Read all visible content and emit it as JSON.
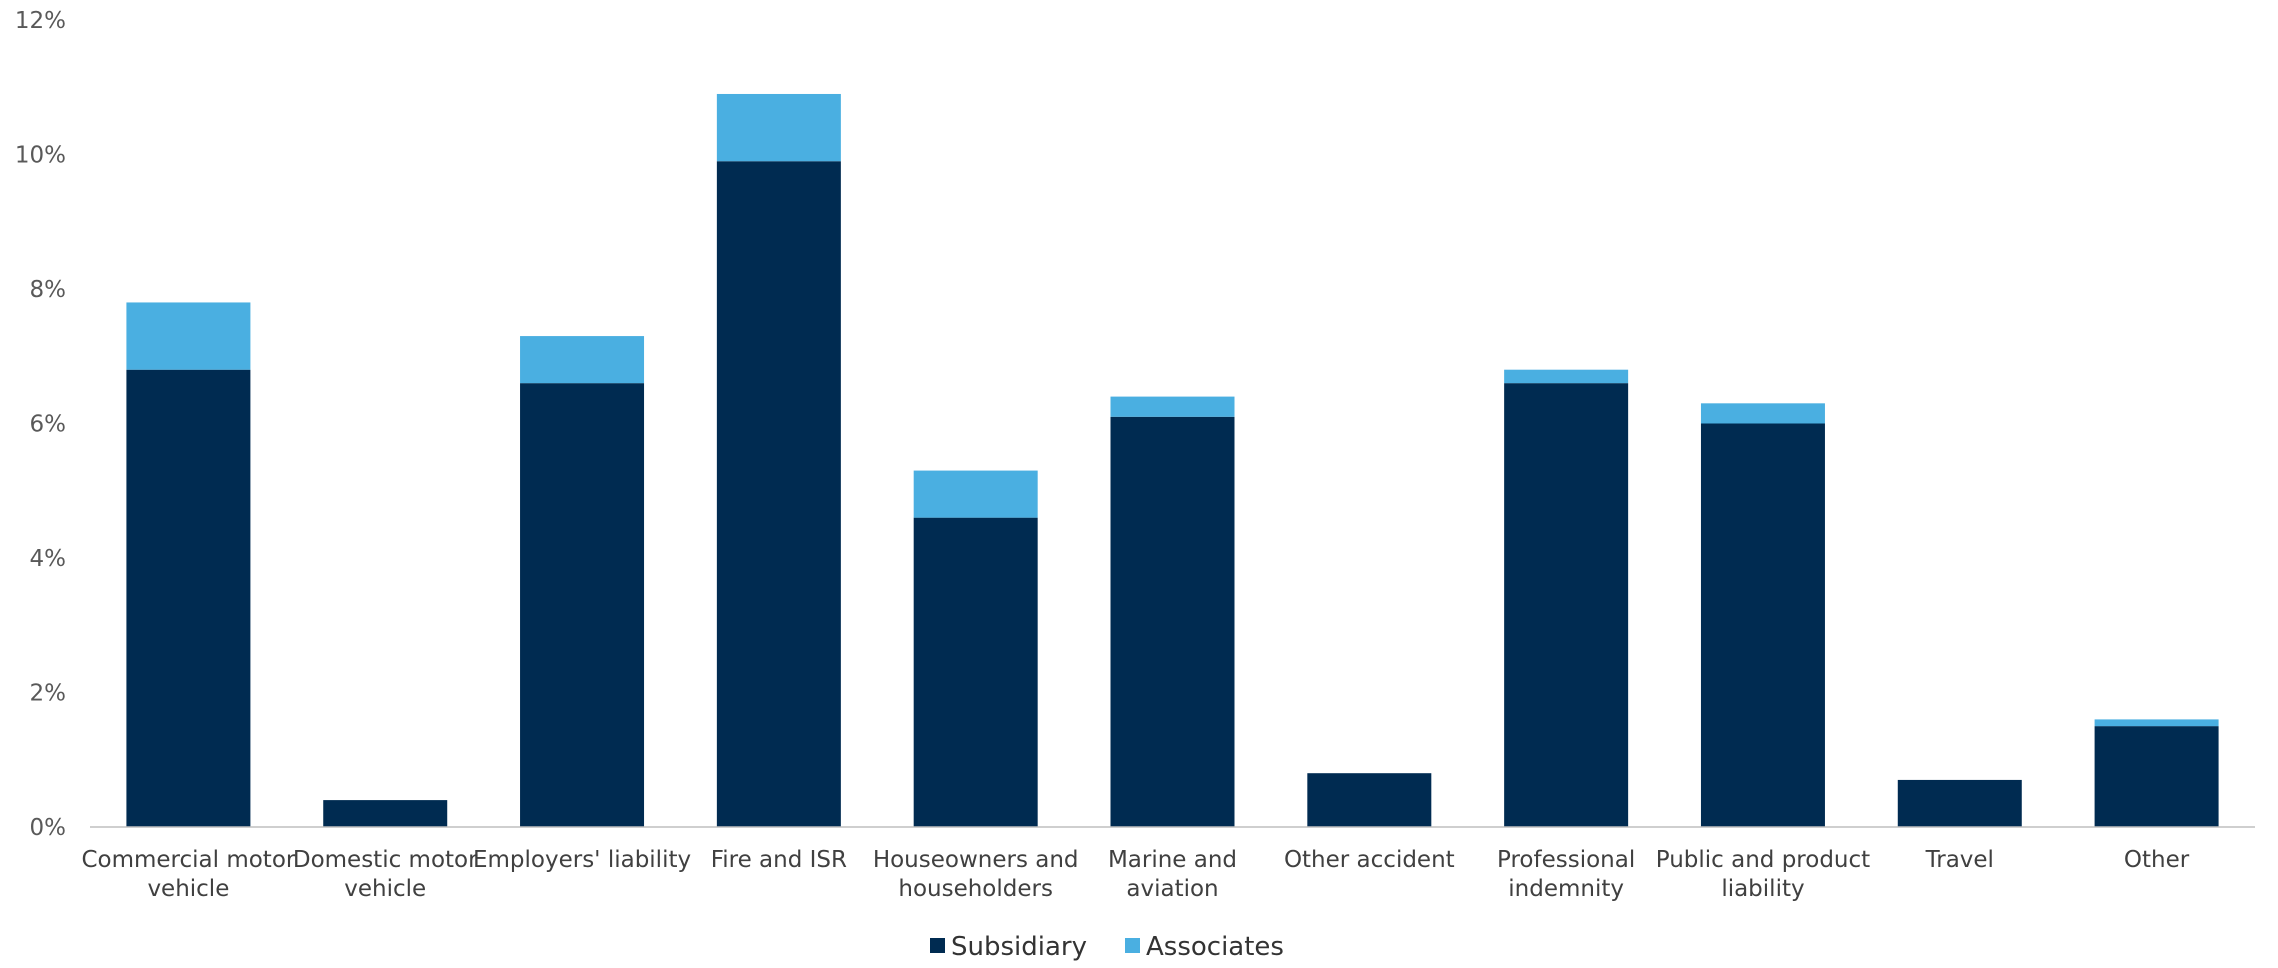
{
  "chart_data": {
    "type": "bar",
    "stacked": true,
    "categories": [
      [
        "Commercial motor",
        "vehicle"
      ],
      [
        "Domestic motor",
        "vehicle"
      ],
      [
        "Employers' liability"
      ],
      [
        "Fire and ISR"
      ],
      [
        "Houseowners and",
        "householders"
      ],
      [
        "Marine and",
        "aviation"
      ],
      [
        "Other accident"
      ],
      [
        "Professional",
        "indemnity"
      ],
      [
        "Public and product",
        "liability"
      ],
      [
        "Travel"
      ],
      [
        "Other"
      ]
    ],
    "series": [
      {
        "name": "Subsidiary",
        "color": "#002B51",
        "values": [
          6.8,
          0.4,
          6.6,
          9.9,
          4.6,
          6.1,
          0.8,
          6.6,
          6.0,
          0.7,
          1.5
        ]
      },
      {
        "name": "Associates",
        "color": "#4AAFE1",
        "values": [
          1.0,
          0.0,
          0.7,
          1.0,
          0.7,
          0.3,
          0.0,
          0.2,
          0.3,
          0.0,
          0.1
        ]
      }
    ],
    "ylim": [
      0,
      12
    ],
    "yticks": [
      0,
      2,
      4,
      6,
      8,
      10,
      12
    ],
    "ytick_labels": [
      "0%",
      "2%",
      "4%",
      "6%",
      "8%",
      "10%",
      "12%"
    ],
    "grid": false,
    "legend_position": "bottom-center"
  }
}
